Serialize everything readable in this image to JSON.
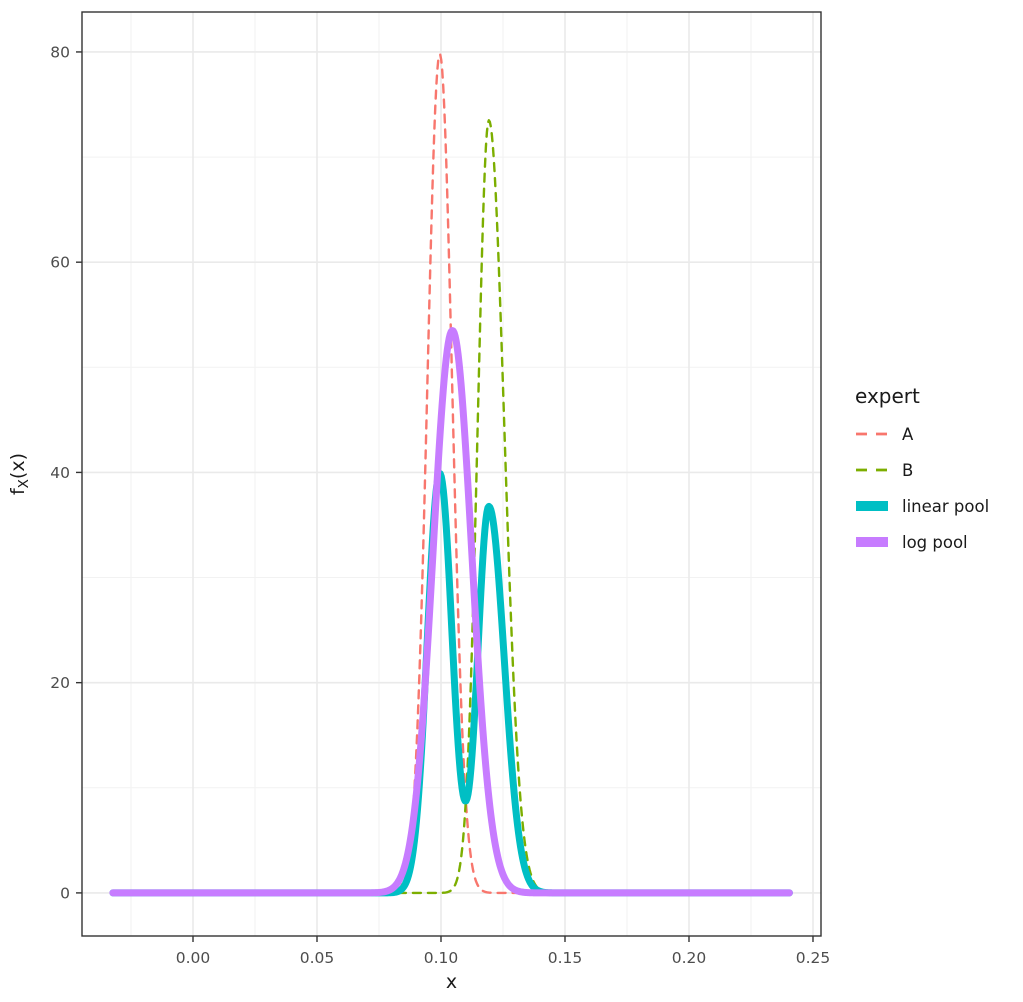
{
  "chart_data": {
    "type": "line",
    "title": "",
    "xlabel": "x",
    "ylabel": "f_X(x)",
    "ylabel_parts": {
      "base": "f",
      "sub": "X",
      "rest": "(x)"
    },
    "x_domain": [
      -0.04476,
      0.25323
    ],
    "y_domain": [
      -4.1,
      83.8
    ],
    "x_ticks": [
      0.0,
      0.05,
      0.1,
      0.15,
      0.2,
      0.25
    ],
    "x_tick_labels": [
      "0.00",
      "0.05",
      "0.10",
      "0.15",
      "0.20",
      "0.25"
    ],
    "x_minor_ticks": [
      -0.025,
      0.025,
      0.075,
      0.125,
      0.175,
      0.225
    ],
    "y_ticks": [
      0,
      20,
      40,
      60,
      80
    ],
    "y_tick_labels": [
      "0",
      "20",
      "40",
      "60",
      "80"
    ],
    "y_minor_ticks": [
      10,
      30,
      50,
      70
    ],
    "grid": true,
    "legend_position": "right",
    "legend_title": "expert",
    "curve_x_range": [
      -0.0323,
      0.2407
    ],
    "series": [
      {
        "name": "A",
        "color": "#F8766D",
        "style": "dashed",
        "line_width": 2.4,
        "model": {
          "components": [
            {
              "amp": 79.8,
              "mean": 0.0995,
              "sd_left": 0.005,
              "sd_right": 0.005
            }
          ]
        },
        "peaks": [
          {
            "x": 0.0995,
            "y": 79.8
          }
        ]
      },
      {
        "name": "B",
        "color": "#7CAE00",
        "style": "dashed",
        "line_width": 2.4,
        "model": {
          "components": [
            {
              "amp": 73.5,
              "mean": 0.1193,
              "sd_left": 0.0045,
              "sd_right": 0.0062
            }
          ]
        },
        "peaks": [
          {
            "x": 0.1193,
            "y": 73.5
          }
        ]
      },
      {
        "name": "linear pool",
        "color": "#00BFC4",
        "style": "solid",
        "line_width": 7,
        "model": {
          "components": [
            {
              "amp": 39.9,
              "mean": 0.0995,
              "sd_left": 0.005,
              "sd_right": 0.005
            },
            {
              "amp": 36.75,
              "mean": 0.1193,
              "sd_left": 0.0045,
              "sd_right": 0.0062
            }
          ]
        },
        "peaks": [
          {
            "x": 0.0995,
            "y": 40.3
          },
          {
            "x": 0.1193,
            "y": 36.9
          }
        ],
        "valley": {
          "x": 0.109,
          "y": 12.4
        }
      },
      {
        "name": "log pool",
        "color": "#C77CFF",
        "style": "solid",
        "line_width": 7,
        "model": {
          "components": [
            {
              "amp": 53.5,
              "mean": 0.1046,
              "sd_left": 0.0078,
              "sd_right": 0.0078
            }
          ]
        },
        "peaks": [
          {
            "x": 0.1046,
            "y": 53.5
          }
        ]
      }
    ]
  },
  "theme": {
    "background": "#FFFFFF",
    "grid_major": "#EAEAEA",
    "grid_minor": "#F2F2F2",
    "panel_border": "#333333",
    "tick_color": "#333333",
    "tick_label_color": "#4D4D4D",
    "axis_title_color": "#1A1A1A"
  }
}
